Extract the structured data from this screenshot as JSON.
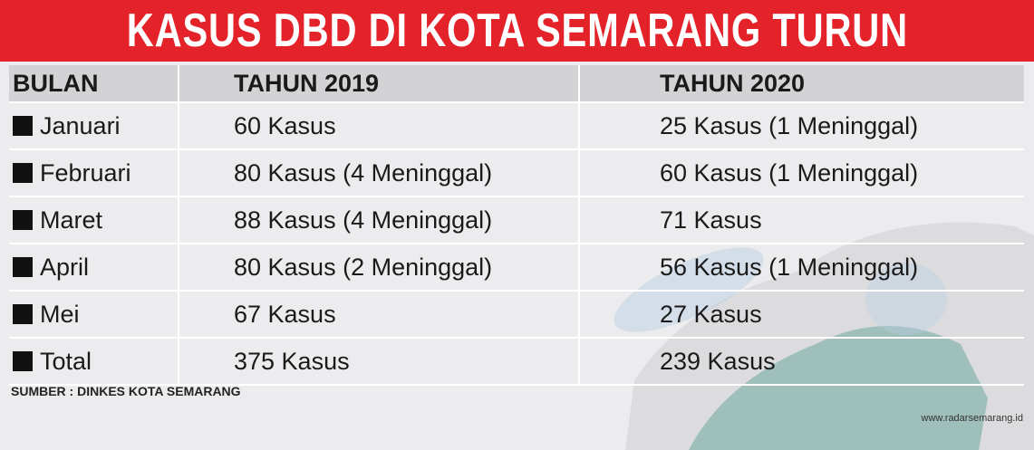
{
  "title": "KASUS DBD DI KOTA SEMARANG TURUN",
  "table": {
    "header": [
      "BULAN",
      "TAHUN 2019",
      "TAHUN 2020"
    ],
    "rows": [
      [
        "Januari",
        "60 Kasus",
        "25 Kasus (1 Meninggal)"
      ],
      [
        "Februari",
        "80 Kasus (4 Meninggal)",
        "60 Kasus (1 Meninggal)"
      ],
      [
        "Maret",
        "88 Kasus (4 Meninggal)",
        "71 Kasus"
      ],
      [
        "April",
        "80 Kasus (2 Meninggal)",
        "56 Kasus (1 Meninggal)"
      ],
      [
        "Mei",
        "67 Kasus",
        "27 Kasus"
      ],
      [
        "Total",
        "375 Kasus",
        "239 Kasus"
      ]
    ]
  },
  "source": "SUMBER : DINKES KOTA SEMARANG",
  "watermark": "www.radarsemarang.id"
}
